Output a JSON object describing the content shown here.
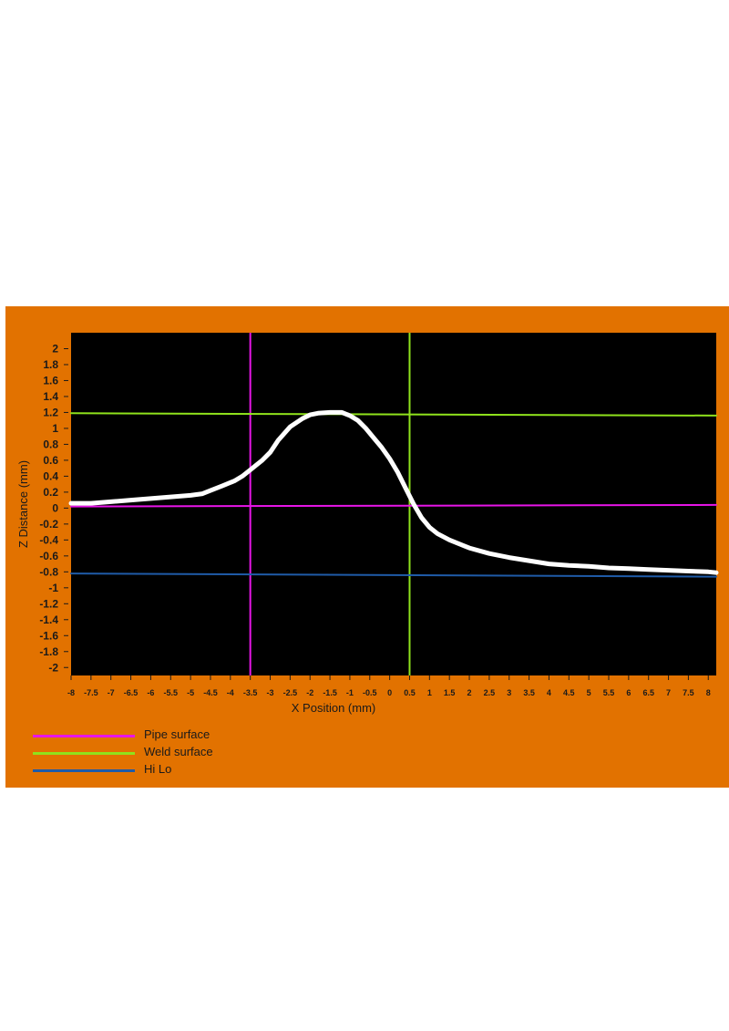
{
  "chart_data": {
    "type": "line",
    "xlabel": "X Position (mm)",
    "ylabel": "Z Distance (mm)",
    "xlim": [
      -8,
      8.2
    ],
    "ylim": [
      -2.1,
      2.2
    ],
    "grid": false,
    "legend_position": "bottom-left",
    "x_ticks": [
      "-8",
      "-7.5",
      "-7",
      "-6.5",
      "-6",
      "-5.5",
      "-5",
      "-4.5",
      "-4",
      "-3.5",
      "-3",
      "-2.5",
      "-2",
      "-1.5",
      "-1",
      "-0.5",
      "0",
      "0.5",
      "1",
      "1.5",
      "2",
      "2.5",
      "3",
      "3.5",
      "4",
      "4.5",
      "5",
      "5.5",
      "6",
      "6.5",
      "7",
      "7.5",
      "8"
    ],
    "y_ticks": [
      "2",
      "1.8",
      "1.6",
      "1.4",
      "1.2",
      "1",
      "0.8",
      "0.6",
      "0.4",
      "0.2",
      "0",
      "-0.2",
      "-0.4",
      "-0.6",
      "-0.8",
      "-1",
      "-1.2",
      "-1.4",
      "-1.6",
      "-1.8",
      "-2"
    ],
    "series": [
      {
        "name": "",
        "color": "#ffffff",
        "x": [
          -8,
          -7.5,
          -7,
          -6.5,
          -6,
          -5.5,
          -5,
          -4.7,
          -4.5,
          -4.2,
          -3.9,
          -3.7,
          -3.5,
          -3.2,
          -3.0,
          -2.8,
          -2.5,
          -2.2,
          -2.0,
          -1.8,
          -1.5,
          -1.2,
          -1.0,
          -0.8,
          -0.6,
          -0.4,
          -0.2,
          0.0,
          0.2,
          0.4,
          0.6,
          0.8,
          1.0,
          1.2,
          1.5,
          2.0,
          2.5,
          3.0,
          3.5,
          4.0,
          4.5,
          5.0,
          5.5,
          6.0,
          6.5,
          7.0,
          7.5,
          8.0,
          8.2
        ],
        "y": [
          0.06,
          0.06,
          0.08,
          0.1,
          0.12,
          0.14,
          0.16,
          0.18,
          0.22,
          0.28,
          0.34,
          0.4,
          0.48,
          0.6,
          0.7,
          0.85,
          1.02,
          1.12,
          1.17,
          1.19,
          1.2,
          1.2,
          1.16,
          1.1,
          1.0,
          0.88,
          0.76,
          0.62,
          0.45,
          0.25,
          0.05,
          -0.12,
          -0.24,
          -0.32,
          -0.4,
          -0.5,
          -0.57,
          -0.62,
          -0.66,
          -0.7,
          -0.72,
          -0.73,
          -0.75,
          -0.76,
          -0.77,
          -0.78,
          -0.79,
          -0.8,
          -0.81
        ]
      },
      {
        "name": "Pipe surface",
        "color": "#e815e8",
        "x": [
          -8,
          8.2
        ],
        "y": [
          0.02,
          0.04
        ]
      },
      {
        "name": "Weld surface",
        "color": "#8fe21c",
        "x": [
          -8,
          8.2
        ],
        "y": [
          1.19,
          1.16
        ]
      },
      {
        "name": "Hi Lo",
        "color": "#1f5ba8",
        "x": [
          -8,
          8.2
        ],
        "y": [
          -0.82,
          -0.86
        ]
      }
    ],
    "vertical_lines": [
      {
        "x": -3.5,
        "color": "#e815e8"
      },
      {
        "x": 0.5,
        "color": "#8fe21c"
      }
    ],
    "plot_background": "#000000",
    "panel_background": "#e27200"
  }
}
